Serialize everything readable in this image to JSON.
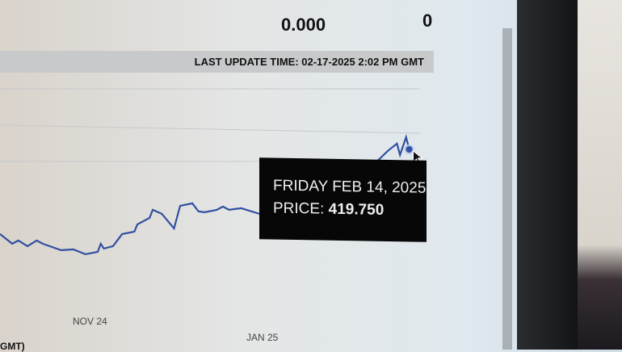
{
  "stats": {
    "value1": "0.000",
    "value2": "0"
  },
  "last_update": "LAST UPDATE TIME: 02-17-2025 2:02 PM GMT",
  "footer_fragment": "GMT)",
  "tooltip": {
    "date": "FRIDAY FEB 14, 2025",
    "price_label": "PRICE:",
    "price_value": "419.750"
  },
  "colors": {
    "line": "#3050a0",
    "tooltip_bg": "#070707"
  },
  "chart_data": {
    "type": "line",
    "x_ticks": [
      "NOV 24",
      "JAN 25"
    ],
    "grid": true,
    "points": [
      [
        "2024-10-03",
        367.3
      ],
      [
        "2024-10-07",
        361.3
      ],
      [
        "2024-10-09",
        363.3
      ],
      [
        "2024-10-12",
        359.8
      ],
      [
        "2024-10-15",
        363.3
      ],
      [
        "2024-10-17",
        361.3
      ],
      [
        "2024-10-23",
        357.3
      ],
      [
        "2024-10-27",
        357.8
      ],
      [
        "2024-10-31",
        354.8
      ],
      [
        "2024-11-04",
        356.3
      ],
      [
        "2024-11-05",
        361.3
      ],
      [
        "2024-11-06",
        358.3
      ],
      [
        "2024-11-09",
        359.8
      ],
      [
        "2024-11-12",
        367.3
      ],
      [
        "2024-11-16",
        368.8
      ],
      [
        "2024-11-17",
        373.3
      ],
      [
        "2024-11-21",
        377.3
      ],
      [
        "2024-11-22",
        382.3
      ],
      [
        "2024-11-25",
        379.8
      ],
      [
        "2024-11-29",
        370.8
      ],
      [
        "2024-12-01",
        384.8
      ],
      [
        "2024-12-05",
        386.3
      ],
      [
        "2024-12-07",
        381.3
      ],
      [
        "2024-12-09",
        380.8
      ],
      [
        "2024-12-13",
        382.3
      ],
      [
        "2024-12-15",
        384.3
      ],
      [
        "2024-12-17",
        382.3
      ],
      [
        "2024-12-21",
        383.3
      ],
      [
        "2024-12-27",
        379.8
      ],
      [
        "2025-01-20",
        395.0
      ],
      [
        "2025-02-04",
        413.3
      ],
      [
        "2025-02-07",
        418.8
      ],
      [
        "2025-02-10",
        423.3
      ],
      [
        "2025-02-11",
        416.3
      ],
      [
        "2025-02-13",
        427.3
      ],
      [
        "2025-02-14",
        419.75
      ]
    ],
    "highlighted": {
      "x": "2025-02-14",
      "y": 419.75
    }
  }
}
